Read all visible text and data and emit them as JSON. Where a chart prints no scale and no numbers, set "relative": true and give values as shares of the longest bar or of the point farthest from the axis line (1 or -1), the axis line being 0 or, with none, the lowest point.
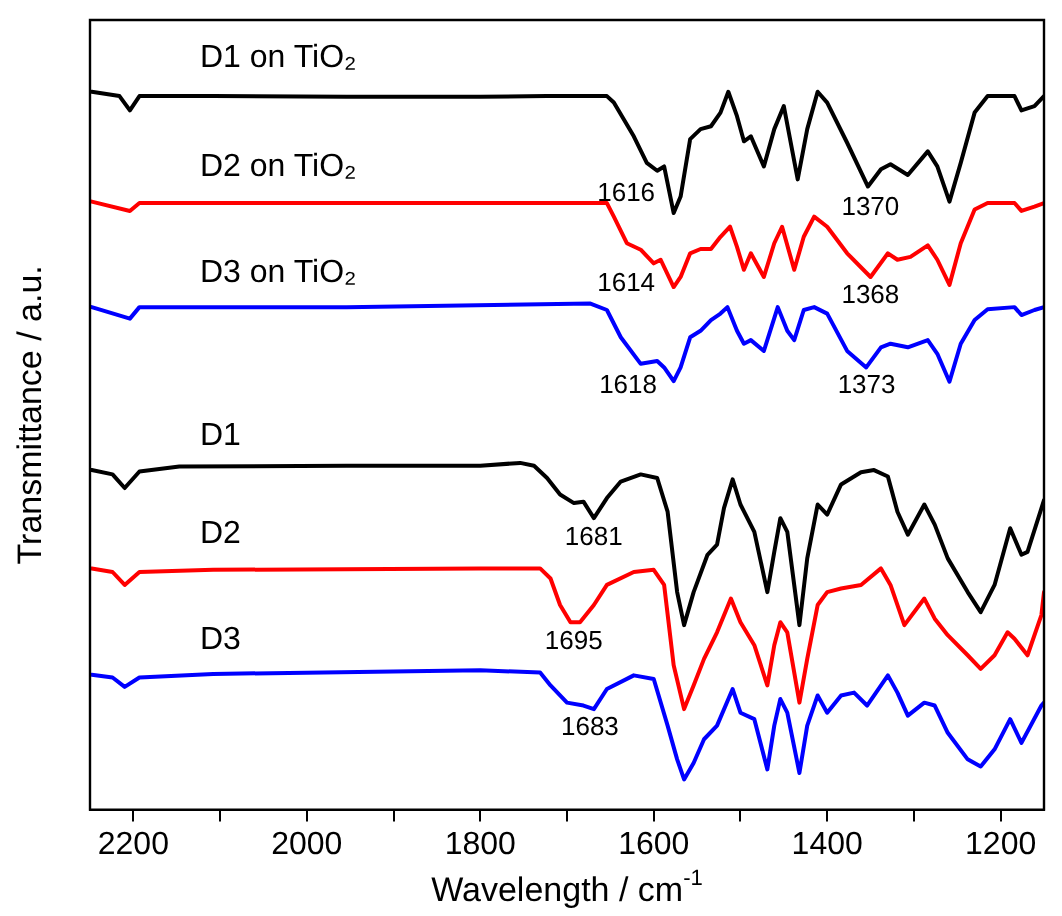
{
  "chart_data": {
    "type": "line",
    "relative": true,
    "xlabel": "Wavelength / cm$^{-1}$",
    "ylabel": "Transmittance / a.u.",
    "xlim": [
      2250,
      1150
    ],
    "xticks": [
      2200,
      {
        "value": 2100,
        "label": null
      },
      2000,
      {
        "value": 1900,
        "label": null
      },
      1800,
      {
        "value": 1700,
        "label": null
      },
      1600,
      {
        "value": 1500,
        "label": null
      },
      1400,
      {
        "value": 1300,
        "label": null
      },
      1200
    ],
    "grid": false,
    "legend": false,
    "series": [
      {
        "name": "D1 on TiO₂",
        "color": "#000000",
        "x": [
          2248,
          2216,
          2204,
          2193,
          2108,
          1954,
          1800,
          1723,
          1654,
          1646,
          1623,
          1608,
          1596,
          1588,
          1577,
          1569,
          1558,
          1546,
          1534,
          1523,
          1514,
          1504,
          1496,
          1488,
          1473,
          1461,
          1450,
          1434,
          1423,
          1411,
          1400,
          1377,
          1353,
          1338,
          1327,
          1307,
          1284,
          1273,
          1259,
          1246,
          1230,
          1215,
          1184,
          1176,
          1161,
          1150
        ],
        "values": [
          1,
          0.994,
          0.974,
          0.994,
          0.994,
          0.993,
          0.993,
          0.994,
          0.994,
          0.985,
          0.938,
          0.901,
          0.89,
          0.896,
          0.831,
          0.854,
          0.934,
          0.948,
          0.952,
          0.971,
          1,
          0.966,
          0.931,
          0.938,
          0.896,
          0.948,
          0.98,
          0.878,
          0.948,
          1,
          0.985,
          0.929,
          0.868,
          0.892,
          0.899,
          0.884,
          0.917,
          0.896,
          0.847,
          0.901,
          0.971,
          0.994,
          0.994,
          0.974,
          0.98,
          0.994
        ]
      },
      {
        "name": "D2 on TiO₂",
        "color": "#ff0000",
        "x": [
          2248,
          2204,
          2193,
          1954,
          1654,
          1646,
          1631,
          1615,
          1600,
          1592,
          1577,
          1569,
          1558,
          1546,
          1534,
          1523,
          1512,
          1504,
          1496,
          1488,
          1473,
          1461,
          1452,
          1438,
          1427,
          1415,
          1400,
          1377,
          1350,
          1330,
          1319,
          1304,
          1284,
          1273,
          1259,
          1246,
          1230,
          1215,
          1184,
          1176,
          1161,
          1150
        ],
        "values": [
          0.847,
          0.834,
          0.845,
          0.845,
          0.845,
          0.826,
          0.789,
          0.78,
          0.761,
          0.766,
          0.728,
          0.742,
          0.775,
          0.781,
          0.781,
          0.798,
          0.812,
          0.784,
          0.752,
          0.775,
          0.742,
          0.789,
          0.812,
          0.752,
          0.798,
          0.826,
          0.812,
          0.775,
          0.742,
          0.775,
          0.766,
          0.77,
          0.786,
          0.766,
          0.731,
          0.789,
          0.836,
          0.845,
          0.845,
          0.834,
          0.84,
          0.845
        ]
      },
      {
        "name": "D3 on TiO₂",
        "color": "#0000ff",
        "x": [
          2248,
          2204,
          2193,
          1954,
          1673,
          1654,
          1638,
          1615,
          1596,
          1588,
          1577,
          1569,
          1558,
          1546,
          1534,
          1523,
          1515,
          1504,
          1496,
          1488,
          1473,
          1457,
          1446,
          1438,
          1427,
          1415,
          1400,
          1377,
          1355,
          1338,
          1327,
          1307,
          1284,
          1273,
          1259,
          1246,
          1230,
          1215,
          1184,
          1176,
          1161,
          1150
        ],
        "values": [
          0.7,
          0.684,
          0.7,
          0.7,
          0.705,
          0.696,
          0.658,
          0.621,
          0.625,
          0.616,
          0.597,
          0.616,
          0.658,
          0.667,
          0.682,
          0.691,
          0.7,
          0.667,
          0.649,
          0.654,
          0.639,
          0.7,
          0.667,
          0.654,
          0.696,
          0.7,
          0.691,
          0.639,
          0.616,
          0.644,
          0.649,
          0.644,
          0.654,
          0.635,
          0.596,
          0.649,
          0.682,
          0.697,
          0.7,
          0.689,
          0.696,
          0.7
        ]
      },
      {
        "name": "D1",
        "color": "#000000",
        "x": [
          2248,
          2224,
          2210,
          2193,
          2147,
          1954,
          1800,
          1754,
          1738,
          1723,
          1708,
          1692,
          1681,
          1669,
          1654,
          1638,
          1615,
          1596,
          1584,
          1573,
          1565,
          1554,
          1538,
          1527,
          1519,
          1509,
          1500,
          1484,
          1469,
          1461,
          1454,
          1446,
          1432,
          1423,
          1411,
          1400,
          1384,
          1361,
          1346,
          1330,
          1319,
          1307,
          1288,
          1276,
          1261,
          1238,
          1223,
          1207,
          1189,
          1176,
          1169,
          1150
        ],
        "values": [
          0.473,
          0.467,
          0.448,
          0.471,
          0.478,
          0.479,
          0.479,
          0.483,
          0.479,
          0.462,
          0.439,
          0.427,
          0.429,
          0.406,
          0.434,
          0.457,
          0.467,
          0.462,
          0.415,
          0.303,
          0.257,
          0.303,
          0.355,
          0.369,
          0.42,
          0.46,
          0.425,
          0.387,
          0.303,
          0.359,
          0.406,
          0.387,
          0.257,
          0.35,
          0.425,
          0.411,
          0.453,
          0.47,
          0.473,
          0.464,
          0.415,
          0.383,
          0.425,
          0.397,
          0.35,
          0.303,
          0.275,
          0.313,
          0.392,
          0.355,
          0.359,
          0.431
        ]
      },
      {
        "name": "D2",
        "color": "#ff0000",
        "x": [
          2248,
          2224,
          2210,
          2193,
          2108,
          1800,
          1731,
          1719,
          1708,
          1696,
          1685,
          1669,
          1654,
          1623,
          1600,
          1588,
          1577,
          1565,
          1554,
          1542,
          1527,
          1511,
          1500,
          1484,
          1469,
          1461,
          1454,
          1446,
          1432,
          1423,
          1411,
          1400,
          1384,
          1361,
          1338,
          1327,
          1311,
          1288,
          1276,
          1261,
          1238,
          1223,
          1207,
          1192,
          1184,
          1169,
          1153,
          1150
        ],
        "values": [
          0.336,
          0.331,
          0.313,
          0.331,
          0.334,
          0.336,
          0.336,
          0.322,
          0.285,
          0.261,
          0.261,
          0.285,
          0.313,
          0.331,
          0.334,
          0.313,
          0.201,
          0.14,
          0.173,
          0.21,
          0.247,
          0.294,
          0.261,
          0.229,
          0.173,
          0.229,
          0.261,
          0.247,
          0.149,
          0.21,
          0.285,
          0.303,
          0.308,
          0.313,
          0.336,
          0.313,
          0.257,
          0.294,
          0.266,
          0.243,
          0.215,
          0.196,
          0.215,
          0.247,
          0.238,
          0.215,
          0.271,
          0.303
        ]
      },
      {
        "name": "D3",
        "color": "#0000ff",
        "x": [
          2248,
          2224,
          2210,
          2193,
          2108,
          1800,
          1731,
          1719,
          1700,
          1681,
          1669,
          1654,
          1623,
          1600,
          1584,
          1573,
          1565,
          1554,
          1542,
          1527,
          1509,
          1500,
          1484,
          1469,
          1461,
          1454,
          1446,
          1432,
          1423,
          1411,
          1400,
          1384,
          1369,
          1354,
          1330,
          1319,
          1307,
          1288,
          1276,
          1261,
          1238,
          1223,
          1207,
          1189,
          1176,
          1153,
          1150
        ],
        "values": [
          0.188,
          0.184,
          0.171,
          0.184,
          0.189,
          0.194,
          0.191,
          0.173,
          0.149,
          0.145,
          0.14,
          0.168,
          0.187,
          0.182,
          0.117,
          0.07,
          0.042,
          0.065,
          0.098,
          0.117,
          0.168,
          0.135,
          0.126,
          0.056,
          0.117,
          0.154,
          0.135,
          0.051,
          0.117,
          0.159,
          0.135,
          0.159,
          0.163,
          0.145,
          0.187,
          0.163,
          0.131,
          0.149,
          0.145,
          0.107,
          0.07,
          0.06,
          0.084,
          0.126,
          0.093,
          0.145,
          0.149
        ]
      }
    ],
    "annotations": [
      "1616",
      "1370",
      "1614",
      "1368",
      "1618",
      "1373",
      "1681",
      "1695",
      "1683"
    ]
  }
}
